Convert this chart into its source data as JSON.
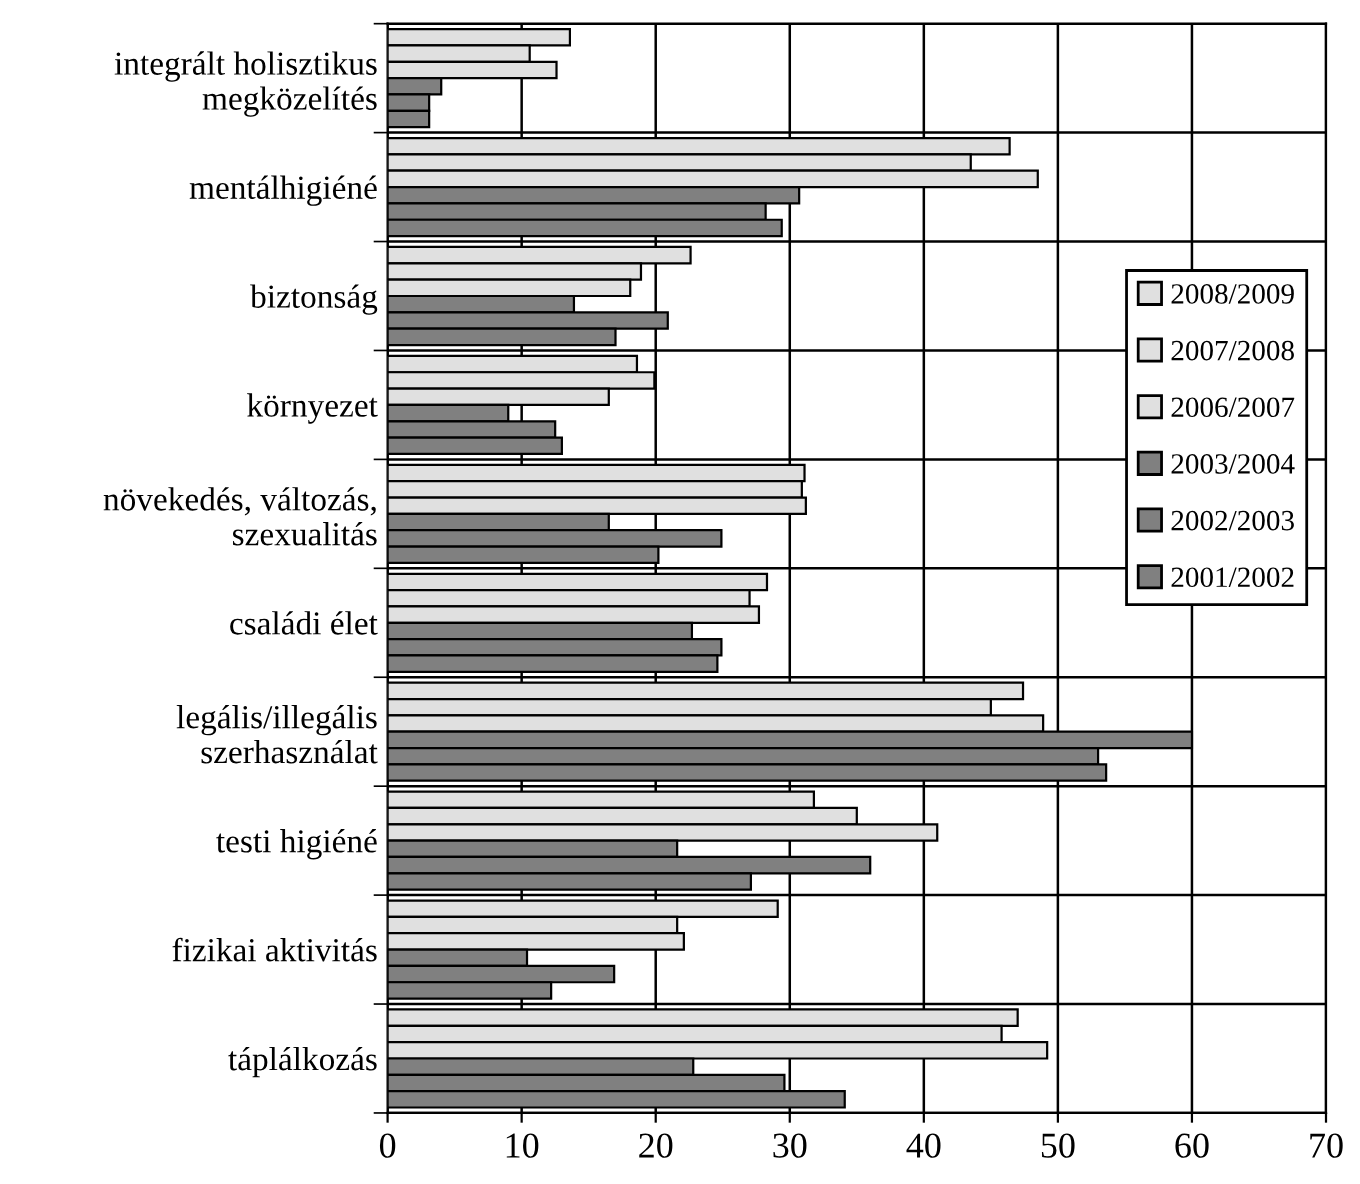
{
  "chart_data": {
    "type": "bar",
    "orientation": "horizontal",
    "categories": [
      "integrált holisztikus\nmegközelítés",
      "mentálhigiéné",
      "biztonság",
      "környezet",
      "növekedés, változás,\nszexualitás",
      "családi élet",
      "legális/illegális\nszerhasználat",
      "testi higiéné",
      "fizikai aktivitás",
      "táplálkozás"
    ],
    "series": [
      {
        "name": "2008/2009",
        "color": "#e0e0e0",
        "values": [
          13.6,
          46.4,
          22.6,
          18.6,
          31.1,
          28.3,
          47.4,
          31.8,
          29.1,
          47.0
        ]
      },
      {
        "name": "2007/2008",
        "color": "#e0e0e0",
        "values": [
          10.6,
          43.5,
          18.9,
          19.9,
          30.9,
          27.0,
          45.0,
          35.0,
          21.6,
          45.8
        ]
      },
      {
        "name": "2006/2007",
        "color": "#e0e0e0",
        "values": [
          12.6,
          48.5,
          18.1,
          16.5,
          31.2,
          27.7,
          48.9,
          41.0,
          22.1,
          49.2
        ]
      },
      {
        "name": "2003/2004",
        "color": "#808080",
        "values": [
          4.0,
          30.7,
          13.9,
          9.0,
          16.5,
          22.7,
          60.0,
          21.6,
          10.4,
          22.8
        ]
      },
      {
        "name": "2002/2003",
        "color": "#808080",
        "values": [
          3.1,
          28.2,
          20.9,
          12.5,
          24.9,
          24.9,
          53.0,
          36.0,
          16.9,
          29.6
        ]
      },
      {
        "name": "2001/2002",
        "color": "#808080",
        "values": [
          3.1,
          29.4,
          17.0,
          13.0,
          20.2,
          24.6,
          53.6,
          27.1,
          12.2,
          34.1
        ]
      }
    ],
    "xlim": [
      0,
      70
    ],
    "xticks": [
      0,
      10,
      20,
      30,
      40,
      50,
      60,
      70
    ],
    "grid": true,
    "legend": "right"
  }
}
